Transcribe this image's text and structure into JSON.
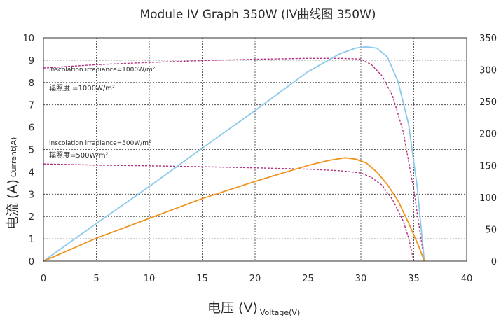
{
  "chart_data": {
    "type": "line",
    "title": "Module IV Graph 350W (IV曲线图 350W)",
    "xlabel": "电压 (V)",
    "xlabel_sub": "Voltage(V)",
    "ylabel": "电流 (A)",
    "ylabel_sub": "Current(A)",
    "xlim": [
      0,
      40
    ],
    "ylim_left": [
      0,
      10
    ],
    "ylim_right": [
      0,
      350
    ],
    "x_ticks": [
      "0",
      "5",
      "10",
      "15",
      "20",
      "25",
      "30",
      "35",
      "40"
    ],
    "y_left_ticks": [
      "0",
      "1",
      "2",
      "3",
      "4",
      "5",
      "6",
      "7",
      "8",
      "9",
      "10"
    ],
    "y_right_ticks": [
      "0",
      "50",
      "100",
      "150",
      "200",
      "250",
      "300",
      "350"
    ],
    "grid": true,
    "annotations": {
      "irr1000_en": "inscolation irradiance=1000W/m²",
      "irr1000_cn": "辐照度 =1000W/m²",
      "irr500_en": "inscolation irradiance=500W/m²",
      "irr500_cn": "辐照度=500W/m²"
    },
    "series": [
      {
        "axis": "left",
        "style": "dashed",
        "color": "#b0307f",
        "x": [
          0,
          5,
          10,
          15,
          20,
          25,
          28,
          30,
          31,
          32,
          33,
          34,
          35,
          35.5,
          36
        ],
        "y": [
          8.65,
          8.8,
          8.9,
          8.98,
          9.04,
          9.08,
          9.08,
          9.05,
          8.8,
          8.3,
          7.4,
          5.8,
          3.2,
          1.6,
          0
        ]
      },
      {
        "axis": "left",
        "style": "dashed",
        "color": "#b0307f",
        "x": [
          0,
          5,
          10,
          15,
          20,
          25,
          28,
          30,
          31,
          32,
          33,
          34,
          34.5,
          35
        ],
        "y": [
          4.35,
          4.3,
          4.27,
          4.23,
          4.18,
          4.12,
          4.05,
          3.95,
          3.75,
          3.4,
          2.75,
          1.8,
          1.05,
          0
        ]
      },
      {
        "axis": "right",
        "style": "solid",
        "color": "#8cc9ea",
        "x": [
          0,
          5,
          10,
          15,
          20,
          25,
          28,
          29.5,
          30.5,
          31.5,
          32.5,
          33.5,
          34.5,
          35.3,
          36
        ],
        "y": [
          0,
          59,
          117,
          177,
          236,
          297,
          325,
          334,
          336,
          334,
          320,
          282,
          215,
          120,
          0
        ]
      },
      {
        "axis": "right",
        "style": "solid",
        "color": "#f0931e",
        "x": [
          0,
          5,
          10,
          15,
          20,
          25,
          27,
          28.5,
          29.5,
          30.5,
          31.5,
          32.5,
          33.5,
          34.5,
          35.5,
          36
        ],
        "y": [
          0,
          36,
          67,
          98,
          125,
          150,
          158,
          162,
          160,
          154,
          140,
          120,
          95,
          60,
          22,
          0
        ]
      }
    ]
  }
}
